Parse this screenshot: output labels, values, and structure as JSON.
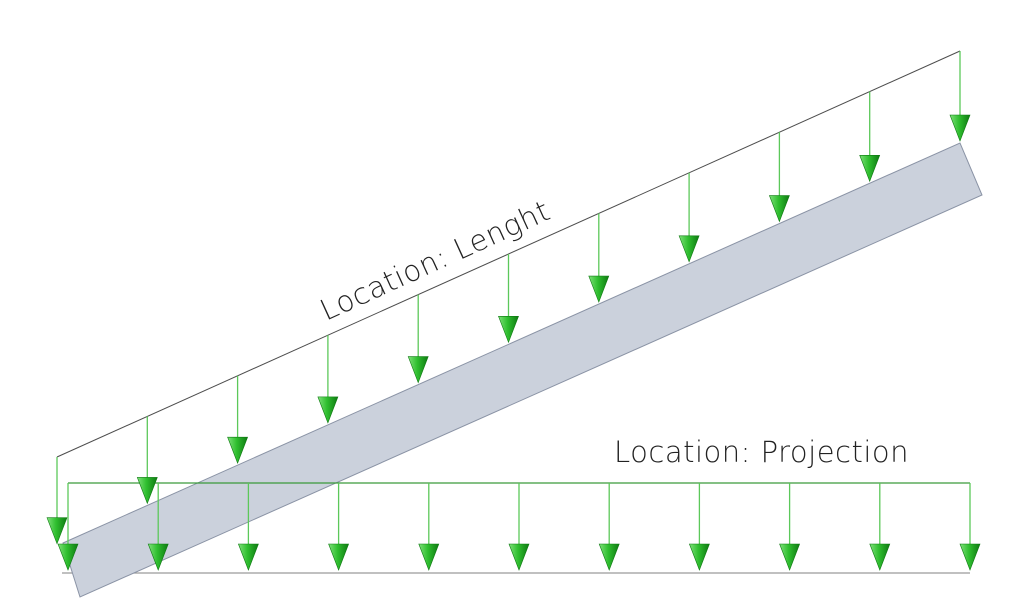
{
  "labels": {
    "length_label": "Location: Lenght",
    "projection_label": "Location: Projection"
  },
  "diagram": {
    "load_arrow_count_length": 11,
    "load_arrow_count_projection": 11
  },
  "colors": {
    "beam_fill": "#cbd1dc",
    "beam_stroke": "#8a93a5",
    "arrow_fill": "#2fbf2f",
    "arrow_dark": "#0f7a12",
    "stem": "#5cc85a",
    "envelope": "#4d4d4d",
    "projection_line": "#3a9a3a",
    "baseline": "#9a9a9a"
  }
}
